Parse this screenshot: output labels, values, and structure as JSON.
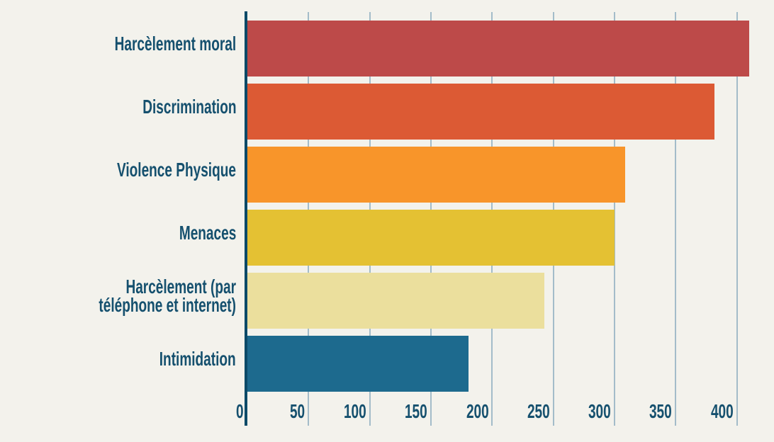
{
  "chart_data": {
    "type": "bar",
    "orientation": "horizontal",
    "title": "",
    "xlabel": "",
    "ylabel": "",
    "categories": [
      "Harcèlement moral",
      "Discrimination",
      "Violence Physique",
      "Menaces",
      "Harcèlement (par téléphone et internet)",
      "Intimidation"
    ],
    "values": [
      410,
      382,
      309,
      300,
      243,
      181
    ],
    "bar_colors": [
      "#bd4a49",
      "#dc5a34",
      "#f8952a",
      "#e4c133",
      "#ebdf9d",
      "#1d6a8e"
    ],
    "xticks": [
      0,
      50,
      100,
      150,
      200,
      250,
      300,
      350,
      400
    ],
    "xlim": [
      0,
      431
    ],
    "grid": true,
    "legend": false
  },
  "colors": {
    "background": "#f3f2ec",
    "axis_line": "#0c4a68",
    "gridline": "#a3bcc9",
    "label_text": "#15506e"
  }
}
